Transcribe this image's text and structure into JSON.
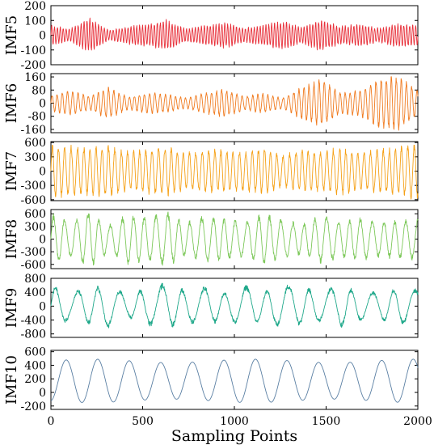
{
  "chart_data": [
    {
      "type": "line",
      "ylabel": "IMF5",
      "ylim": [
        -200,
        200
      ],
      "yticks": [
        -200,
        -100,
        0,
        100,
        200
      ],
      "color": "#e8303a",
      "series": [
        {
          "period": 16,
          "amplitude_env": [
            60,
            40,
            110,
            30,
            55,
            70,
            95,
            40,
            60,
            80,
            45,
            65,
            90,
            50,
            100,
            55,
            70,
            45,
            75,
            60
          ]
        }
      ]
    },
    {
      "type": "line",
      "ylabel": "IMF6",
      "ylim": [
        -180,
        180
      ],
      "yticks": [
        -160,
        -80,
        0,
        80,
        160
      ],
      "color": "#f07a1e",
      "series": [
        {
          "period": 28,
          "amplitude_env": [
            45,
            70,
            40,
            90,
            35,
            60,
            50,
            30,
            60,
            80,
            40,
            55,
            30,
            90,
            130,
            60,
            70,
            140,
            150,
            70
          ]
        }
      ]
    },
    {
      "type": "line",
      "ylabel": "IMF7",
      "ylim": [
        -620,
        620
      ],
      "yticks": [
        -600,
        -300,
        0,
        300,
        600
      ],
      "color": "#f5a015",
      "series": [
        {
          "period": 34,
          "amplitude_env": [
            520,
            480,
            450,
            500,
            380,
            430,
            470,
            350,
            420,
            400,
            380,
            450,
            300,
            420,
            380,
            460,
            350,
            420,
            460,
            540
          ]
        }
      ]
    },
    {
      "type": "line",
      "ylabel": "IMF8",
      "ylim": [
        -700,
        700
      ],
      "yticks": [
        -600,
        -300,
        0,
        300,
        600
      ],
      "color": "#7dc85a",
      "series": [
        {
          "period": 62,
          "amplitude_env": [
            560,
            400,
            620,
            300,
            540,
            480,
            600,
            350,
            520,
            450,
            380,
            560,
            420,
            330,
            520,
            400,
            460,
            380,
            420,
            450
          ]
        }
      ]
    },
    {
      "type": "line",
      "ylabel": "IMF9",
      "ylim": [
        -900,
        800
      ],
      "yticks": [
        -800,
        -400,
        0,
        400,
        800
      ],
      "color": "#1fa88a",
      "series": [
        {
          "period": 115,
          "amplitude_env": [
            550,
            380,
            470,
            560,
            300,
            500,
            600,
            420,
            520,
            350,
            560,
            380,
            600,
            500,
            420,
            550,
            400,
            380,
            470,
            460
          ]
        }
      ]
    },
    {
      "type": "line",
      "ylabel": "IMF10",
      "ylim": [
        -250,
        620
      ],
      "yticks": [
        -200,
        0,
        200,
        400,
        600
      ],
      "color": "#5a7fa3",
      "series": [
        {
          "period": 172,
          "center": 170,
          "amplitude": 320
        }
      ]
    }
  ],
  "x_axis": {
    "label": "Sampling Points",
    "xlim": [
      0,
      2000
    ],
    "ticks": [
      0,
      500,
      1000,
      1500,
      2000
    ]
  }
}
